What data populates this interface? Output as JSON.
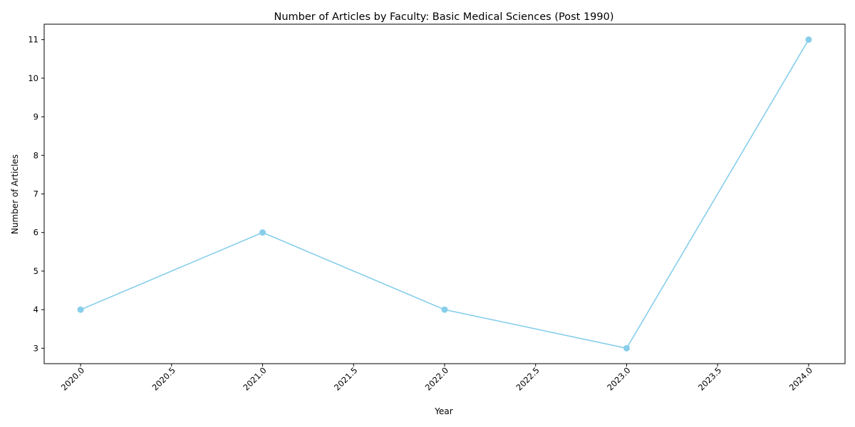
{
  "chart_data": {
    "type": "line",
    "title": "Number of Articles by Faculty: Basic Medical Sciences (Post 1990)",
    "xlabel": "Year",
    "ylabel": "Number of Articles",
    "x": [
      2020,
      2021,
      2022,
      2023,
      2024
    ],
    "series": [
      {
        "values": [
          4,
          6,
          4,
          3,
          11
        ],
        "color": "#87ceeb",
        "marker": "circle"
      }
    ],
    "xticks": [
      "2020.0",
      "2020.5",
      "2021.0",
      "2021.5",
      "2022.0",
      "2022.5",
      "2023.0",
      "2023.5",
      "2024.0"
    ],
    "yticks": [
      "3",
      "4",
      "5",
      "6",
      "7",
      "8",
      "9",
      "10",
      "11"
    ],
    "xlim": [
      2019.8,
      2024.2
    ],
    "ylim": [
      2.6,
      11.4
    ],
    "grid": false,
    "legend": "none",
    "xtick_rotation_deg": 45
  }
}
